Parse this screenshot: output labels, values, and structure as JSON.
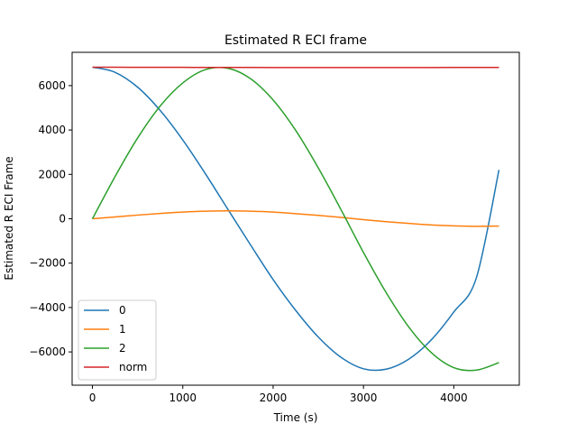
{
  "chart_data": {
    "type": "line",
    "title": "Estimated R ECI frame",
    "xlabel": "Time (s)",
    "ylabel": "Estimated R ECI Frame",
    "xlim": [
      -225,
      4725
    ],
    "ylim": [
      -7500,
      7500
    ],
    "xticks": [
      0,
      1000,
      2000,
      3000,
      4000
    ],
    "yticks": [
      -6000,
      -4000,
      -2000,
      0,
      2000,
      4000,
      6000
    ],
    "ytick_labels": [
      "−6000",
      "−4000",
      "−2000",
      "0",
      "2000",
      "4000",
      "6000"
    ],
    "xtick_labels": [
      "0",
      "1000",
      "2000",
      "3000",
      "4000"
    ],
    "grid": false,
    "legend_position": "lower-left",
    "x": [
      0,
      250,
      500,
      750,
      1000,
      1250,
      1500,
      1750,
      2000,
      2250,
      2500,
      2750,
      3000,
      3250,
      3500,
      3750,
      4000,
      4250,
      4500
    ],
    "series": [
      {
        "name": "0",
        "color": "#1f77b4",
        "values": [
          6830,
          6600,
          5930,
          4880,
          3550,
          2030,
          420,
          -1180,
          -2740,
          -4130,
          -5330,
          -6240,
          -6760,
          -6780,
          -6330,
          -5460,
          -4200,
          -2660,
          2200
        ]
      },
      {
        "name": "1",
        "color": "#ff7f0e",
        "values": [
          0,
          80,
          165,
          240,
          300,
          340,
          355,
          340,
          300,
          230,
          150,
          60,
          -40,
          -130,
          -210,
          -280,
          -320,
          -340,
          -330
        ]
      },
      {
        "name": "2",
        "color": "#2ca02c",
        "values": [
          0,
          1900,
          3640,
          5080,
          6120,
          6720,
          6780,
          6310,
          5350,
          3980,
          2290,
          420,
          -1520,
          -3320,
          -4870,
          -6030,
          -6710,
          -6820,
          -6480
        ]
      },
      {
        "name": "norm",
        "color": "#d62728",
        "values": [
          6830,
          6828,
          6826,
          6824,
          6822,
          6820,
          6818,
          6817,
          6816,
          6815,
          6814,
          6814,
          6814,
          6814,
          6815,
          6816,
          6817,
          6818,
          6820
        ]
      }
    ]
  }
}
